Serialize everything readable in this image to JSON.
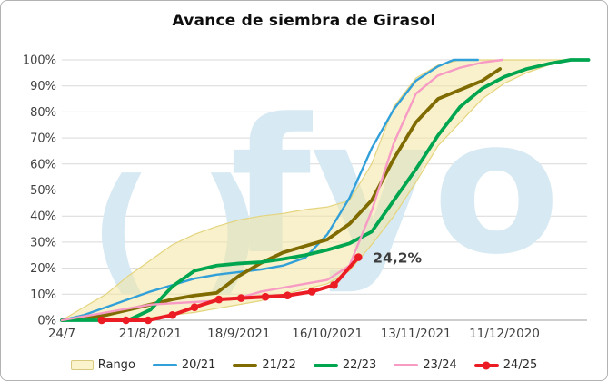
{
  "chart_data": {
    "type": "line",
    "title": "Avance de siembra de Girasol",
    "ylabel": "",
    "xlabel": "",
    "ylim": [
      0,
      100
    ],
    "grid": "horizontal",
    "legend_position": "bottom",
    "y_ticks": [
      "0%",
      "10%",
      "20%",
      "30%",
      "40%",
      "50%",
      "60%",
      "70%",
      "80%",
      "90%",
      "100%"
    ],
    "x_ticks": [
      {
        "week": 0,
        "label": "24/7"
      },
      {
        "week": 4,
        "label": "21/8/2021"
      },
      {
        "week": 8,
        "label": "18/9/2021"
      },
      {
        "week": 12,
        "label": "16/10/2021"
      },
      {
        "week": 16,
        "label": "13/11/2021"
      },
      {
        "week": 20,
        "label": "11/12/2020"
      }
    ],
    "band": {
      "name": "Rango",
      "fill": "rgba(243,230,160,0.55)",
      "stroke": "#e4d47e",
      "x": [
        0,
        1,
        2,
        3,
        4,
        5,
        6,
        7,
        8,
        9,
        10,
        11,
        12,
        13,
        14,
        15,
        16,
        17,
        18,
        19,
        20,
        21,
        22,
        23,
        23.8
      ],
      "top": [
        0,
        5,
        10,
        17,
        23,
        29,
        33,
        36,
        38.5,
        40,
        41,
        42.5,
        43.5,
        46,
        60,
        82,
        93,
        98,
        100,
        100,
        100,
        100,
        100,
        100,
        100
      ],
      "bottom": [
        0,
        0,
        0,
        0,
        1,
        2,
        3,
        4.5,
        6,
        7.5,
        10,
        12,
        14,
        19,
        29,
        40,
        53,
        67,
        76,
        85,
        91,
        95,
        98,
        100,
        100
      ]
    },
    "series": [
      {
        "name": "20/21",
        "color": "#31a0d8",
        "width": 2.4,
        "markers": false,
        "x": [
          0,
          1,
          2,
          3,
          4,
          5,
          6,
          7,
          8,
          9,
          10,
          11,
          12,
          13,
          14,
          15,
          16,
          17,
          17.7,
          18.8
        ],
        "y": [
          0,
          2,
          5,
          8,
          11,
          13.5,
          16,
          17.5,
          18.5,
          19.5,
          21,
          24,
          33,
          47,
          66,
          81,
          92,
          97.5,
          100,
          100
        ]
      },
      {
        "name": "21/22",
        "color": "#7f6b00",
        "width": 3.8,
        "markers": false,
        "x": [
          0,
          1,
          2,
          3,
          4,
          5,
          6,
          7,
          8,
          9,
          10,
          11,
          12,
          13,
          14,
          15,
          16,
          17,
          18,
          19,
          19.8
        ],
        "y": [
          0,
          0.5,
          2,
          4,
          6,
          8,
          9.5,
          10.5,
          17,
          22,
          26,
          28.5,
          31,
          37,
          46,
          62,
          76,
          85,
          88.5,
          92,
          96.5
        ]
      },
      {
        "name": "22/23",
        "color": "#00a550",
        "width": 3.8,
        "markers": false,
        "x": [
          0,
          1,
          2,
          3,
          4,
          5,
          6,
          7,
          8,
          9,
          10,
          11,
          12,
          13,
          14,
          15,
          16,
          17,
          18,
          19,
          20,
          21,
          22,
          23,
          23.8
        ],
        "y": [
          0,
          0,
          0,
          0,
          4,
          13,
          19,
          21,
          21.8,
          22.3,
          23.5,
          25,
          27,
          29.5,
          34,
          46,
          58,
          71,
          82,
          89,
          93.5,
          96.5,
          98.5,
          100,
          100
        ]
      },
      {
        "name": "23/24",
        "color": "#f79bc4",
        "width": 2.4,
        "markers": false,
        "x": [
          0,
          1,
          2,
          3,
          4,
          5,
          6,
          7,
          8,
          9,
          10,
          11,
          12,
          13,
          14,
          15,
          16,
          17,
          18,
          19,
          19.9
        ],
        "y": [
          0,
          1.5,
          3,
          4.5,
          6,
          6.5,
          7,
          7.5,
          8.5,
          11,
          12.5,
          14,
          15.5,
          21,
          42,
          68,
          87,
          94,
          97,
          99,
          100
        ]
      },
      {
        "name": "24/25",
        "color": "#ec1c24",
        "width": 4,
        "markers": true,
        "x": [
          1.8,
          2.9,
          3.9,
          5.0,
          6.0,
          7.1,
          8.1,
          9.2,
          10.2,
          11.3,
          12.3,
          13.4
        ],
        "y": [
          0,
          0,
          0,
          2,
          5,
          8,
          8.5,
          9,
          9.5,
          11,
          13.5,
          24.2
        ]
      }
    ],
    "annotation": {
      "text": "24,2%",
      "week": 13.4,
      "value": 24.2
    },
    "watermark": {
      "mark": "( )",
      "text": "fyo",
      "color": "#d7e9f3"
    },
    "legend": [
      {
        "label": "Rango",
        "type": "band",
        "fill": "#faf3cb",
        "stroke": "#d9c97e"
      },
      {
        "label": "20/21",
        "type": "line",
        "color": "#31a0d8",
        "thickness": 3,
        "marker": false
      },
      {
        "label": "21/22",
        "type": "line",
        "color": "#7f6b00",
        "thickness": 4,
        "marker": false
      },
      {
        "label": "22/23",
        "type": "line",
        "color": "#00a550",
        "thickness": 4,
        "marker": false
      },
      {
        "label": "23/24",
        "type": "line",
        "color": "#f79bc4",
        "thickness": 3,
        "marker": false
      },
      {
        "label": "24/25",
        "type": "line",
        "color": "#ec1c24",
        "thickness": 4,
        "marker": true
      }
    ],
    "colors": {
      "gridline": "#d9d9d9",
      "axis": "#9e9e9e",
      "tick_text": "#404040",
      "annotation_text": "#3d3d3d",
      "title_text": "#0d0d0d"
    }
  }
}
